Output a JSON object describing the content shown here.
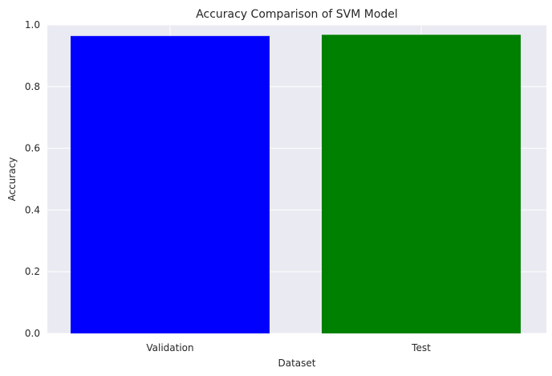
{
  "chart_data": {
    "type": "bar",
    "title": "Accuracy Comparison of SVM Model",
    "xlabel": "Dataset",
    "ylabel": "Accuracy",
    "categories": [
      "Validation",
      "Test"
    ],
    "values": [
      0.964,
      0.968
    ],
    "colors": [
      "#0000ff",
      "#008000"
    ],
    "ylim": [
      0,
      1.0
    ],
    "yticks": [
      0.0,
      0.2,
      0.4,
      0.6,
      0.8,
      1.0
    ],
    "ytick_labels": [
      "0.0",
      "0.2",
      "0.4",
      "0.6",
      "0.8",
      "1.0"
    ],
    "grid": true,
    "background": "#eaeaf2",
    "grid_color": "#ffffff"
  }
}
